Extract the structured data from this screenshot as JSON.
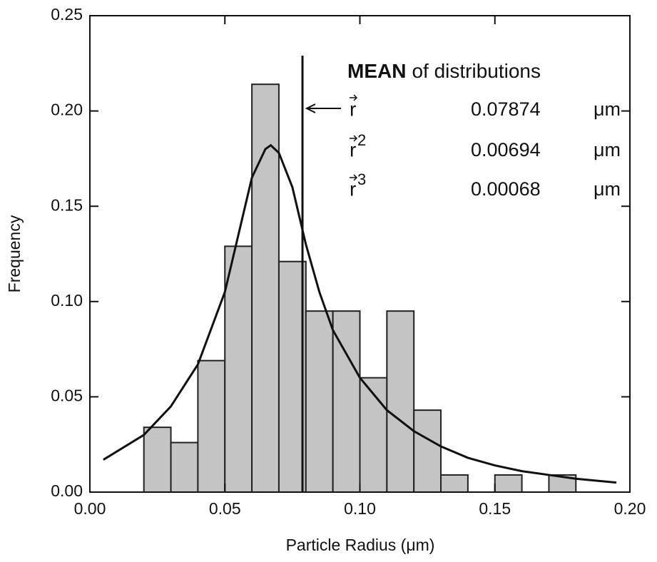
{
  "chart_data": {
    "type": "histogram",
    "xlabel": "Particle Radius (μm)",
    "ylabel": "Frequency",
    "bins": [
      0.02,
      0.03,
      0.04,
      0.05,
      0.06,
      0.07,
      0.08,
      0.09,
      0.1,
      0.11,
      0.12,
      0.13,
      0.14,
      0.15,
      0.16,
      0.17,
      0.18
    ],
    "counts": [
      0.034,
      0.026,
      0.069,
      0.129,
      0.214,
      0.121,
      0.095,
      0.095,
      0.06,
      0.095,
      0.043,
      0.009,
      0,
      0.009,
      0,
      0.009
    ],
    "color": "#c4c4c4",
    "curve": {
      "x": [
        0.005,
        0.02,
        0.03,
        0.04,
        0.05,
        0.055,
        0.06,
        0.065,
        0.067,
        0.07,
        0.075,
        0.08,
        0.085,
        0.09,
        0.1,
        0.11,
        0.12,
        0.13,
        0.14,
        0.15,
        0.16,
        0.17,
        0.18,
        0.195
      ],
      "values": [
        0.017,
        0.03,
        0.045,
        0.067,
        0.105,
        0.135,
        0.165,
        0.18,
        0.182,
        0.178,
        0.16,
        0.13,
        0.105,
        0.085,
        0.06,
        0.043,
        0.032,
        0.024,
        0.018,
        0.014,
        0.011,
        0.009,
        0.007,
        0.005
      ],
      "color": "#111111"
    },
    "annotation_title_bold": "MEAN",
    "annotation_title": "of distributions",
    "annotations": [
      {
        "symbol": "r",
        "value": 0.07874,
        "unit": "μm"
      },
      {
        "symbol": "r",
        "power": "2",
        "value": 0.00694,
        "unit": "μm"
      },
      {
        "symbol": "r",
        "power": "3",
        "value": 0.00068,
        "unit": "μm"
      }
    ],
    "xlim": [
      0,
      0.2
    ],
    "ylim": [
      0,
      0.25
    ],
    "xticks": [
      {
        "value": 0,
        "label": "0.00"
      },
      0.05,
      {
        "value": 0.1,
        "label": "0.10"
      },
      0.15,
      {
        "value": 0.2,
        "label": "0.20"
      }
    ],
    "yticks": [
      {
        "value": 0,
        "label": "0.00"
      },
      0.05,
      {
        "value": 0.1,
        "label": "0.10"
      },
      0.15,
      {
        "value": 0.2,
        "label": "0.20"
      },
      0.25
    ]
  }
}
